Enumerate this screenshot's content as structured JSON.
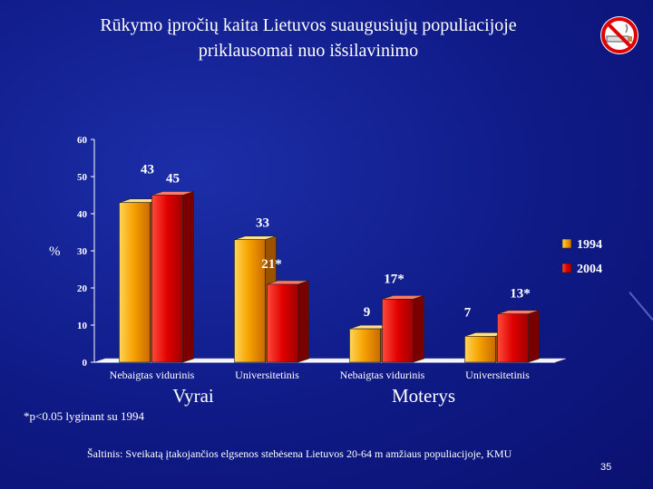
{
  "slide": {
    "title_line1": "Rūkymo įpročių kaita Lietuvos suaugusiųjų populiacijoje",
    "title_line2": "priklausomai nuo išsilavinimo",
    "footnote": "*p<0.05 lyginant su 1994",
    "source": "Šaltinis: Sveikatą įtakojančios elgsenos stebėsena Lietuvos 20-64 m amžiaus populiacijoje, KMU",
    "page_number": "35"
  },
  "colors": {
    "series_1994": "#f5a000",
    "series_2004": "#e00000",
    "background": "#10198a",
    "text": "#ffffff"
  },
  "icons": [
    "no-smoking-icon"
  ],
  "chart_data": {
    "type": "bar",
    "ylabel": "%",
    "ylim": [
      0,
      60
    ],
    "yticks": [
      0,
      10,
      20,
      30,
      40,
      50,
      60
    ],
    "categories": [
      "Nebaigtas vidurinis",
      "Universitetinis",
      "Nebaigtas vidurinis",
      "Universitetinis"
    ],
    "groups": [
      {
        "label": "Vyrai",
        "categories": [
          0,
          1
        ]
      },
      {
        "label": "Moterys",
        "categories": [
          2,
          3
        ]
      }
    ],
    "series": [
      {
        "name": "1994",
        "values": [
          43,
          33,
          9,
          7
        ],
        "labels": [
          "43",
          "33",
          "9",
          "7"
        ]
      },
      {
        "name": "2004",
        "values": [
          45,
          21,
          17,
          13
        ],
        "labels": [
          "45",
          "21*",
          "17*",
          "13*"
        ]
      }
    ],
    "legend_position": "right",
    "grid": false
  }
}
